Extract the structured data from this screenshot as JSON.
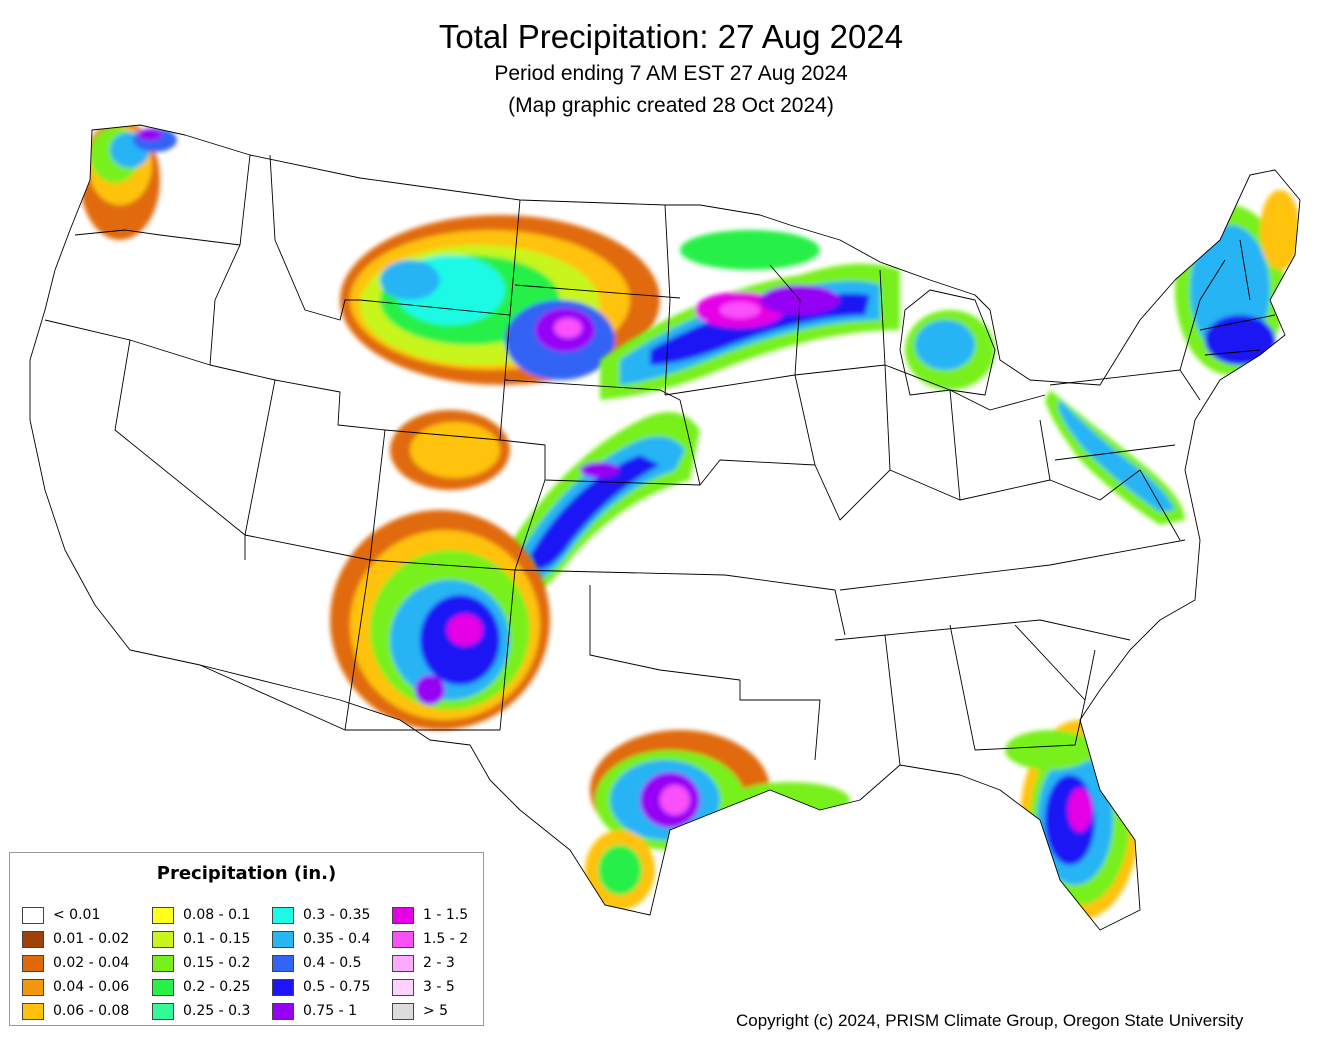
{
  "header": {
    "title": "Total Precipitation: 27 Aug 2024",
    "subtitle_period": "Period ending 7 AM EST 27 Aug 2024",
    "subtitle_created": "(Map graphic created 28 Oct 2024)"
  },
  "legend": {
    "title": "Precipitation (in.)",
    "items": [
      {
        "label": "< 0.01",
        "color": "#ffffff"
      },
      {
        "label": "0.01 - 0.02",
        "color": "#a0400a"
      },
      {
        "label": "0.02 - 0.04",
        "color": "#e06a0a"
      },
      {
        "label": "0.04 - 0.06",
        "color": "#f5960f"
      },
      {
        "label": "0.06 - 0.08",
        "color": "#ffc20a"
      },
      {
        "label": "0.08 - 0.1",
        "color": "#ffff1e"
      },
      {
        "label": "0.1 - 0.15",
        "color": "#c8f51e"
      },
      {
        "label": "0.15 - 0.2",
        "color": "#78f01e"
      },
      {
        "label": "0.2 - 0.25",
        "color": "#28f046"
      },
      {
        "label": "0.25 - 0.3",
        "color": "#32fa96"
      },
      {
        "label": "0.3 - 0.35",
        "color": "#1efae6"
      },
      {
        "label": "0.35 - 0.4",
        "color": "#28b4f5"
      },
      {
        "label": "0.4 - 0.5",
        "color": "#3264f5"
      },
      {
        "label": "0.5 - 0.75",
        "color": "#1e14f5"
      },
      {
        "label": "0.75 - 1",
        "color": "#9600f5"
      },
      {
        "label": "1 - 1.5",
        "color": "#e600e6"
      },
      {
        "label": "1.5 - 2",
        "color": "#fa50fa"
      },
      {
        "label": "2 - 3",
        "color": "#fcaafc"
      },
      {
        "label": "3 - 5",
        "color": "#fcd2fc"
      },
      {
        "label": "> 5",
        "color": "#dcdcdc"
      }
    ]
  },
  "footer": {
    "copyright": "Copyright (c) 2024, PRISM Climate Group, Oregon State University"
  }
}
